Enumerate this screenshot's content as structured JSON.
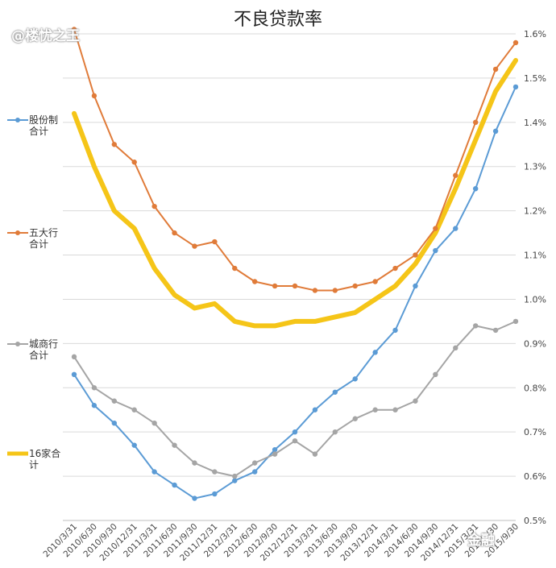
{
  "chart_data": {
    "type": "line",
    "title": "不良贷款率",
    "xlabel": "",
    "ylabel": "",
    "ylim": [
      0.5,
      1.6
    ],
    "yticks": [
      "0.5%",
      "0.6%",
      "0.7%",
      "0.8%",
      "0.9%",
      "1.0%",
      "1.1%",
      "1.2%",
      "1.3%",
      "1.4%",
      "1.5%",
      "1.6%"
    ],
    "y_axis_side": "right",
    "grid": true,
    "legend_position": "left",
    "categories": [
      "2010/3/31",
      "2010/6/30",
      "2010/9/30",
      "2010/12/31",
      "2011/3/31",
      "2011/6/30",
      "2011/9/30",
      "2011/12/31",
      "2012/3/31",
      "2012/6/30",
      "2012/9/30",
      "2012/12/31",
      "2013/3/31",
      "2013/6/30",
      "2013/9/30",
      "2013/12/31",
      "2014/3/31",
      "2014/6/30",
      "2014/9/30",
      "2014/12/31",
      "2015/3/31",
      "2015/6/30",
      "2015/9/30"
    ],
    "series": [
      {
        "name": "股份制合计",
        "color": "#5b9bd5",
        "width": 2,
        "marker": true,
        "values": [
          0.83,
          0.76,
          0.72,
          0.67,
          0.61,
          0.58,
          0.55,
          0.56,
          0.59,
          0.61,
          0.66,
          0.7,
          0.75,
          0.79,
          0.82,
          0.88,
          0.93,
          1.03,
          1.11,
          1.16,
          1.25,
          1.38,
          1.48
        ]
      },
      {
        "name": "五大行合计",
        "color": "#e07b39",
        "width": 2,
        "marker": true,
        "values": [
          1.61,
          1.46,
          1.35,
          1.31,
          1.21,
          1.15,
          1.12,
          1.13,
          1.07,
          1.04,
          1.03,
          1.03,
          1.02,
          1.02,
          1.03,
          1.04,
          1.07,
          1.1,
          1.16,
          1.28,
          1.4,
          1.52,
          1.58
        ]
      },
      {
        "name": "城商行合计",
        "color": "#a5a5a5",
        "width": 2,
        "marker": true,
        "values": [
          0.87,
          0.8,
          0.77,
          0.75,
          0.72,
          0.67,
          0.63,
          0.61,
          0.6,
          0.63,
          0.65,
          0.68,
          0.65,
          0.7,
          0.73,
          0.75,
          0.75,
          0.77,
          0.83,
          0.89,
          0.94,
          0.93,
          0.95
        ]
      },
      {
        "name": "16家合计",
        "color": "#f5c518",
        "width": 6,
        "marker": false,
        "values": [
          1.42,
          1.3,
          1.2,
          1.16,
          1.07,
          1.01,
          0.98,
          0.99,
          0.95,
          0.94,
          0.94,
          0.95,
          0.95,
          0.96,
          0.97,
          1.0,
          1.03,
          1.08,
          1.15,
          1.25,
          1.36,
          1.47,
          1.54
        ]
      }
    ]
  },
  "watermarks": {
    "top_left": "@楼忧之王",
    "bottom_right": "金融"
  }
}
